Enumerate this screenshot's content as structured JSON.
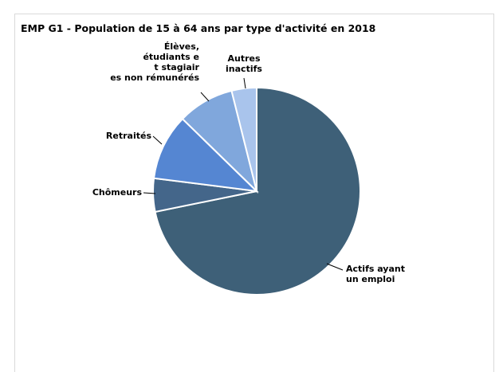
{
  "chart_data": {
    "type": "pie",
    "title": "EMP G1 - Population de 15 à 64 ans par type d'activité en 2018",
    "slices": [
      {
        "label": "Actifs ayant un emploi",
        "value": 71.8,
        "color": "#3e6078"
      },
      {
        "label": "Chômeurs",
        "value": 5.2,
        "color": "#44668a"
      },
      {
        "label": "Retraités",
        "value": 10.3,
        "color": "#5586d2"
      },
      {
        "label": "Élèves, étudiants et stagiaires non rémunérés",
        "value": 8.8,
        "color": "#80a7dc"
      },
      {
        "label": "Autres inactifs",
        "value": 3.9,
        "color": "#a9c4ec"
      }
    ],
    "legend": "none"
  }
}
